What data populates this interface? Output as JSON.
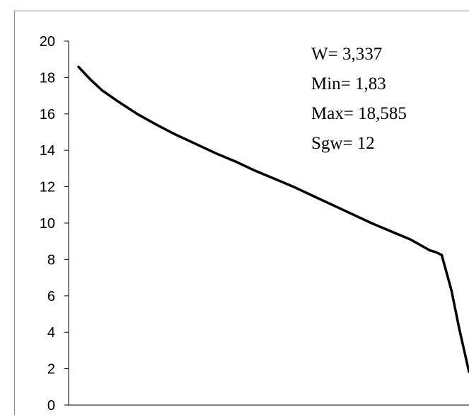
{
  "chart_data": {
    "type": "line",
    "title": "",
    "xlabel": "",
    "ylabel": "",
    "ylim": [
      0,
      20
    ],
    "y_ticks": [
      "0",
      "2",
      "4",
      "6",
      "8",
      "10",
      "12",
      "14",
      "16",
      "18",
      "20"
    ],
    "grid": false,
    "legend": "none",
    "line_color": "#000000",
    "x_range": [
      0,
      100
    ],
    "series": [
      {
        "x": [
          0,
          3,
          6,
          10,
          15,
          20,
          25,
          30,
          35,
          40,
          45,
          50,
          55,
          60,
          65,
          70,
          75,
          80,
          85,
          90,
          91.5,
          93,
          95.5,
          97.5,
          100
        ],
        "y": [
          18.585,
          17.9,
          17.3,
          16.7,
          16.0,
          15.4,
          14.85,
          14.35,
          13.85,
          13.4,
          12.9,
          12.45,
          12.0,
          11.5,
          11.0,
          10.5,
          10.0,
          9.55,
          9.1,
          8.5,
          8.4,
          8.25,
          6.3,
          4.2,
          1.83
        ]
      }
    ],
    "annotations": [
      "W=  3,337",
      "Min=  1,83",
      "Max= 18,585",
      "Sgw= 12"
    ]
  }
}
